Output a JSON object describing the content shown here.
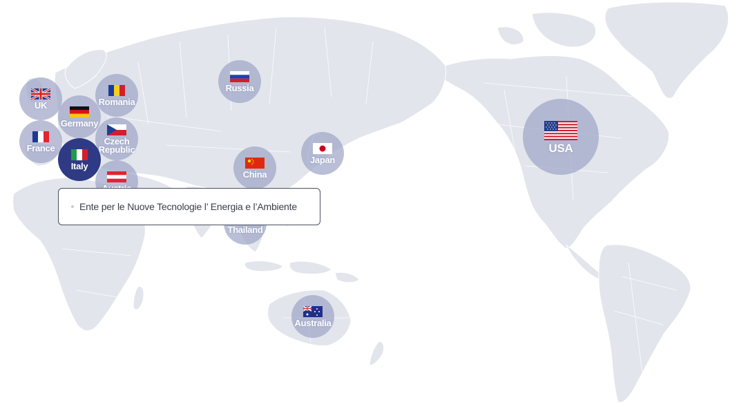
{
  "colors": {
    "land": "#e3e5ec",
    "border": "#ffffff",
    "marker": "#a0a6c8",
    "marker_active": "#2f3a85"
  },
  "countries": [
    {
      "id": "uk",
      "label": "UK",
      "flag": "uk-flag-icon"
    },
    {
      "id": "romania",
      "label": "Romania",
      "flag": "romania-flag-icon"
    },
    {
      "id": "germany",
      "label": "Germany",
      "flag": "germany-flag-icon"
    },
    {
      "id": "czech",
      "label": "Czech Republic",
      "flag": "czech-flag-icon"
    },
    {
      "id": "france",
      "label": "France",
      "flag": "france-flag-icon"
    },
    {
      "id": "italy",
      "label": "Italy",
      "flag": "italy-flag-icon",
      "active": true
    },
    {
      "id": "austria",
      "label": "Austria",
      "flag": "austria-flag-icon"
    },
    {
      "id": "russia",
      "label": "Russia",
      "flag": "russia-flag-icon"
    },
    {
      "id": "china",
      "label": "China",
      "flag": "china-flag-icon"
    },
    {
      "id": "japan",
      "label": "Japan",
      "flag": "japan-flag-icon"
    },
    {
      "id": "thailand",
      "label": "Thailand",
      "flag": "thailand-flag-icon"
    },
    {
      "id": "australia",
      "label": "Australia",
      "flag": "australia-flag-icon"
    },
    {
      "id": "usa",
      "label": "USA",
      "flag": "usa-flag-icon"
    }
  ],
  "tooltip": {
    "items": [
      "Ente per le Nuove Tecnologie l’ Energia e l’Ambiente"
    ]
  }
}
